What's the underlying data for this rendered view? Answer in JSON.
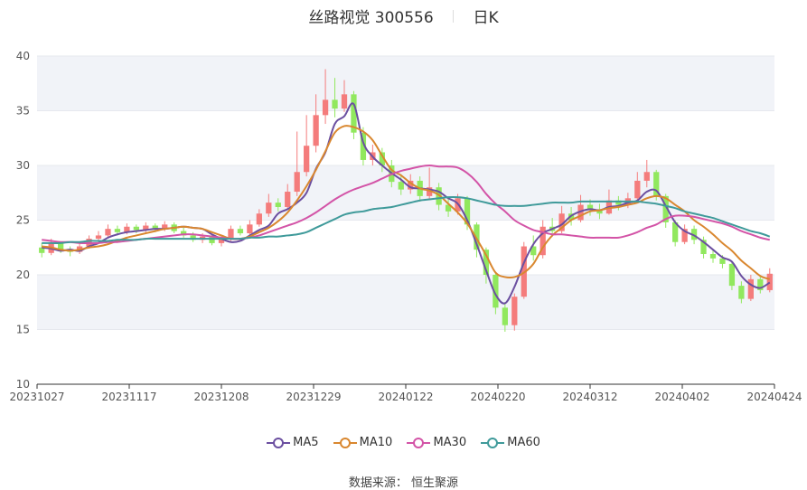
{
  "title": {
    "name": "丝路视觉 300556",
    "period": "日K"
  },
  "source": "数据来源：  恒生聚源",
  "colors": {
    "up": "#f47c7c",
    "down": "#91e85e",
    "ma5": "#6b4fa0",
    "ma10": "#d9872f",
    "ma30": "#d354a7",
    "ma60": "#3f9a9a",
    "band": "#f1f3f8"
  },
  "chart_data": {
    "type": "candlestick",
    "ylim": [
      10,
      40
    ],
    "yticks": [
      10,
      15,
      20,
      25,
      30,
      35,
      40
    ],
    "xtick_labels": [
      "20231027",
      "20231117",
      "20231208",
      "20231229",
      "20240122",
      "20240220",
      "20240312",
      "20240402",
      "20240424"
    ],
    "legend": [
      "MA5",
      "MA10",
      "MA30",
      "MA60"
    ],
    "series": [
      {
        "name": "MA5",
        "values": [
          22.5,
          22.4,
          22.2,
          22.3,
          22.2,
          22.6,
          22.9,
          23.4,
          23.7,
          23.9,
          24.0,
          24.1,
          24.2,
          24.2,
          24.3,
          24.4,
          24.3,
          24.2,
          23.7,
          23.3,
          23.0,
          23.1,
          23.6,
          24.1,
          24.5,
          25.6,
          26.0,
          26.6,
          27.5,
          29.7,
          31.2,
          33.8,
          34.5,
          35.6,
          32.1,
          30.8,
          30.0,
          29.3,
          28.7,
          28.0,
          27.9,
          27.8,
          27.6,
          27.0,
          26.5,
          25.0,
          22.8,
          20.4,
          18.2,
          17.4,
          18.9,
          21.1,
          22.8,
          23.8,
          24.2,
          24.6,
          25.4,
          25.8,
          26.0,
          25.9,
          26.2,
          26.3,
          26.6,
          26.8,
          27.6,
          27.7,
          26.3,
          24.8,
          24.0,
          23.6,
          23.0,
          22.3,
          21.6,
          21.2,
          19.9,
          19.1,
          18.8,
          19.3
        ]
      },
      {
        "name": "MA10",
        "values": [
          22.6,
          22.5,
          22.3,
          22.2,
          22.3,
          22.5,
          22.6,
          22.8,
          23.1,
          23.4,
          23.6,
          23.8,
          24.0,
          24.2,
          24.3,
          24.4,
          24.3,
          24.2,
          23.9,
          23.6,
          23.3,
          23.3,
          23.5,
          23.9,
          24.3,
          24.9,
          25.7,
          26.8,
          28.1,
          29.6,
          31.3,
          33.0,
          33.6,
          33.5,
          33.1,
          32.3,
          30.9,
          29.6,
          29.1,
          28.4,
          27.9,
          27.7,
          27.3,
          26.5,
          25.7,
          24.7,
          23.3,
          21.8,
          20.2,
          19.8,
          19.8,
          20.2,
          21.0,
          22.5,
          23.6,
          24.3,
          25.0,
          25.4,
          25.8,
          25.9,
          26.1,
          26.2,
          26.4,
          26.6,
          27.0,
          27.2,
          27.0,
          26.4,
          25.8,
          25.0,
          24.4,
          23.7,
          22.9,
          22.2,
          21.3,
          20.6,
          19.9,
          19.6
        ]
      },
      {
        "name": "MA30",
        "values": [
          23.2,
          23.1,
          23.0,
          23.0,
          22.9,
          22.9,
          22.9,
          23.0,
          23.0,
          23.1,
          23.2,
          23.3,
          23.4,
          23.5,
          23.6,
          23.7,
          23.7,
          23.6,
          23.5,
          23.4,
          23.3,
          23.3,
          23.4,
          23.6,
          23.9,
          24.2,
          24.5,
          24.8,
          25.2,
          25.7,
          26.3,
          26.9,
          27.4,
          27.8,
          28.1,
          28.4,
          28.8,
          29.2,
          29.5,
          29.7,
          29.9,
          30.0,
          29.9,
          29.9,
          29.8,
          29.3,
          28.5,
          27.4,
          26.5,
          25.8,
          25.0,
          24.5,
          24.1,
          23.9,
          23.7,
          23.7,
          23.6,
          23.5,
          23.4,
          23.4,
          23.4,
          23.4,
          23.6,
          23.9,
          24.3,
          24.6,
          25.1,
          25.4,
          25.4,
          25.3,
          25.1,
          24.9,
          24.7,
          24.4,
          24.0,
          23.7,
          23.4,
          23.2
        ]
      },
      {
        "name": "MA60",
        "values": [
          22.9,
          22.9,
          22.9,
          23.0,
          23.0,
          23.1,
          23.1,
          23.1,
          23.2,
          23.2,
          23.2,
          23.3,
          23.3,
          23.3,
          23.3,
          23.3,
          23.3,
          23.3,
          23.3,
          23.3,
          23.3,
          23.3,
          23.4,
          23.4,
          23.5,
          23.5,
          23.6,
          23.7,
          23.9,
          24.3,
          24.7,
          25.1,
          25.5,
          25.7,
          25.8,
          26.0,
          26.1,
          26.2,
          26.4,
          26.6,
          26.8,
          26.9,
          27.0,
          27.1,
          27.1,
          27.0,
          26.8,
          26.6,
          26.4,
          26.3,
          26.3,
          26.3,
          26.4,
          26.5,
          26.6,
          26.6,
          26.6,
          26.7,
          26.7,
          26.7,
          26.7,
          26.7,
          26.7,
          26.7,
          26.6,
          26.5,
          26.3,
          26.1,
          25.8,
          25.6,
          25.4,
          25.2,
          24.9,
          24.6,
          24.3,
          24.0,
          23.8,
          23.5
        ]
      }
    ],
    "candles": [
      [
        22.5,
        22.0,
        22.9,
        21.6
      ],
      [
        22.0,
        22.9,
        23.3,
        21.8
      ],
      [
        22.9,
        22.3,
        23.0,
        22.0
      ],
      [
        22.3,
        22.1,
        22.6,
        21.7
      ],
      [
        22.1,
        22.6,
        22.9,
        21.9
      ],
      [
        22.6,
        23.3,
        23.6,
        22.4
      ],
      [
        23.3,
        23.6,
        24.0,
        23.1
      ],
      [
        23.6,
        24.2,
        24.6,
        23.4
      ],
      [
        24.2,
        23.9,
        24.5,
        23.6
      ],
      [
        23.9,
        24.4,
        24.7,
        23.7
      ],
      [
        24.4,
        24.1,
        24.6,
        23.8
      ],
      [
        24.1,
        24.5,
        24.8,
        23.9
      ],
      [
        24.5,
        24.2,
        24.7,
        23.9
      ],
      [
        24.2,
        24.6,
        24.9,
        24.0
      ],
      [
        24.6,
        24.0,
        24.8,
        23.8
      ],
      [
        24.0,
        23.6,
        24.3,
        23.4
      ],
      [
        23.6,
        23.2,
        23.9,
        23.0
      ],
      [
        23.2,
        23.5,
        23.8,
        22.9
      ],
      [
        23.5,
        22.9,
        23.7,
        22.7
      ],
      [
        22.9,
        23.3,
        23.6,
        22.6
      ],
      [
        23.3,
        24.2,
        24.5,
        23.1
      ],
      [
        24.2,
        23.8,
        24.5,
        23.6
      ],
      [
        23.8,
        24.6,
        25.0,
        23.6
      ],
      [
        24.6,
        25.6,
        26.0,
        24.4
      ],
      [
        25.6,
        26.6,
        27.4,
        25.3
      ],
      [
        26.6,
        26.2,
        27.0,
        25.8
      ],
      [
        26.2,
        27.6,
        28.3,
        26.0
      ],
      [
        27.6,
        29.4,
        33.1,
        27.2
      ],
      [
        29.4,
        31.8,
        34.6,
        29.0
      ],
      [
        31.8,
        34.6,
        36.5,
        31.2
      ],
      [
        34.6,
        36.0,
        38.8,
        33.8
      ],
      [
        36.0,
        35.2,
        38.0,
        34.4
      ],
      [
        35.2,
        36.5,
        37.8,
        34.9
      ],
      [
        36.5,
        33.0,
        36.8,
        32.4
      ],
      [
        33.0,
        30.5,
        33.5,
        30.0
      ],
      [
        30.5,
        31.2,
        31.9,
        30.0
      ],
      [
        31.2,
        30.0,
        31.6,
        29.4
      ],
      [
        30.0,
        28.5,
        30.5,
        28.0
      ],
      [
        28.5,
        27.8,
        29.2,
        27.3
      ],
      [
        27.8,
        28.6,
        29.2,
        27.4
      ],
      [
        28.6,
        27.2,
        29.0,
        26.7
      ],
      [
        27.2,
        28.0,
        29.8,
        26.9
      ],
      [
        28.0,
        26.4,
        28.4,
        25.9
      ],
      [
        26.4,
        25.8,
        27.1,
        25.3
      ],
      [
        25.8,
        27.0,
        27.4,
        25.5
      ],
      [
        27.0,
        24.6,
        27.2,
        24.1
      ],
      [
        24.6,
        22.3,
        24.8,
        21.6
      ],
      [
        22.3,
        20.0,
        22.5,
        19.2
      ],
      [
        20.0,
        17.0,
        20.3,
        16.4
      ],
      [
        17.0,
        15.4,
        17.5,
        14.8
      ],
      [
        15.4,
        18.0,
        18.3,
        14.9
      ],
      [
        18.0,
        22.6,
        23.0,
        17.8
      ],
      [
        22.6,
        21.8,
        23.6,
        21.3
      ],
      [
        21.8,
        24.4,
        25.0,
        21.5
      ],
      [
        24.4,
        24.0,
        25.2,
        23.5
      ],
      [
        24.0,
        25.6,
        26.3,
        23.8
      ],
      [
        25.6,
        25.0,
        26.2,
        24.5
      ],
      [
        25.0,
        26.4,
        27.3,
        24.8
      ],
      [
        26.4,
        26.0,
        26.9,
        25.4
      ],
      [
        26.0,
        25.6,
        26.5,
        25.1
      ],
      [
        25.6,
        26.8,
        27.8,
        25.5
      ],
      [
        26.8,
        26.4,
        27.2,
        25.9
      ],
      [
        26.4,
        27.0,
        27.5,
        26.1
      ],
      [
        27.0,
        28.6,
        29.4,
        26.8
      ],
      [
        28.6,
        29.4,
        30.5,
        28.0
      ],
      [
        29.4,
        27.2,
        29.6,
        26.8
      ],
      [
        27.2,
        24.8,
        27.4,
        24.3
      ],
      [
        24.8,
        23.0,
        25.0,
        22.6
      ],
      [
        23.0,
        24.2,
        24.6,
        22.8
      ],
      [
        24.2,
        23.2,
        24.5,
        22.8
      ],
      [
        23.2,
        21.9,
        23.5,
        21.5
      ],
      [
        21.9,
        21.5,
        22.3,
        21.1
      ],
      [
        21.5,
        21.0,
        21.8,
        20.6
      ],
      [
        21.0,
        19.0,
        21.2,
        18.6
      ],
      [
        19.0,
        17.8,
        19.4,
        17.4
      ],
      [
        17.8,
        19.6,
        20.0,
        17.6
      ],
      [
        19.6,
        18.6,
        19.9,
        18.3
      ],
      [
        18.6,
        20.1,
        20.6,
        18.4
      ]
    ]
  }
}
